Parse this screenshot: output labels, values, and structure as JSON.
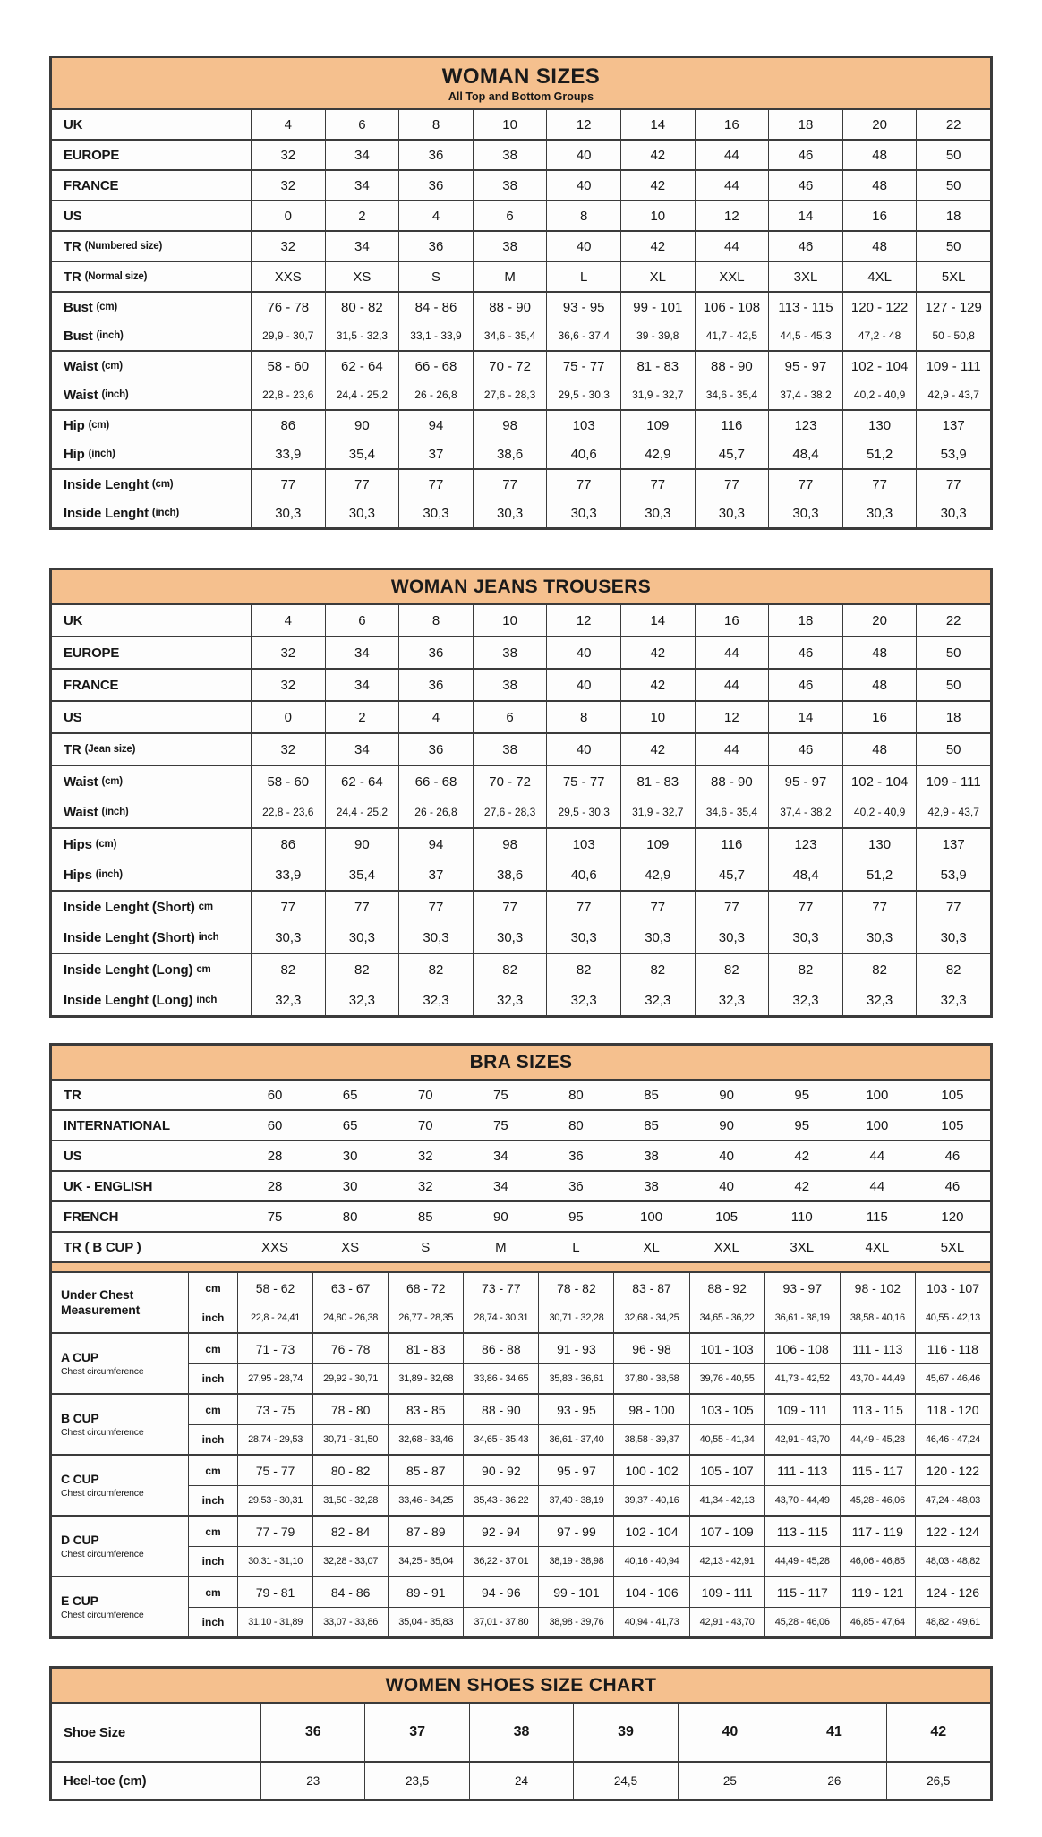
{
  "colors": {
    "header_bg": "#F5C08E",
    "border": "#3B3B3B",
    "text": "#161616"
  },
  "tables": [
    {
      "kind": "standard",
      "title": "WOMAN SIZES",
      "subtitle": "All Top and Bottom Groups",
      "groups": [
        {
          "rows": [
            {
              "label": "UK",
              "sub": "",
              "values": [
                "4",
                "6",
                "8",
                "10",
                "12",
                "14",
                "16",
                "18",
                "20",
                "22"
              ]
            }
          ]
        },
        {
          "rows": [
            {
              "label": "EUROPE",
              "sub": "",
              "values": [
                "32",
                "34",
                "36",
                "38",
                "40",
                "42",
                "44",
                "46",
                "48",
                "50"
              ]
            }
          ]
        },
        {
          "rows": [
            {
              "label": "FRANCE",
              "sub": "",
              "values": [
                "32",
                "34",
                "36",
                "38",
                "40",
                "42",
                "44",
                "46",
                "48",
                "50"
              ]
            }
          ]
        },
        {
          "rows": [
            {
              "label": "US",
              "sub": "",
              "values": [
                "0",
                "2",
                "4",
                "6",
                "8",
                "10",
                "12",
                "14",
                "16",
                "18"
              ]
            }
          ]
        },
        {
          "rows": [
            {
              "label": "TR",
              "sub": "(Numbered size)",
              "values": [
                "32",
                "34",
                "36",
                "38",
                "40",
                "42",
                "44",
                "46",
                "48",
                "50"
              ]
            }
          ]
        },
        {
          "rows": [
            {
              "label": "TR",
              "sub": "(Normal size)",
              "values": [
                "XXS",
                "XS",
                "S",
                "M",
                "L",
                "XL",
                "XXL",
                "3XL",
                "4XL",
                "5XL"
              ]
            }
          ]
        },
        {
          "rows": [
            {
              "label": "Bust",
              "sub": "(cm)",
              "values": [
                "76 - 78",
                "80 - 82",
                "84 - 86",
                "88 - 90",
                "93 - 95",
                "99 - 101",
                "106 - 108",
                "113 - 115",
                "120 - 122",
                "127 - 129"
              ]
            },
            {
              "label": "Bust",
              "sub": "(inch)",
              "small": true,
              "values": [
                "29,9 - 30,7",
                "31,5 - 32,3",
                "33,1 - 33,9",
                "34,6 - 35,4",
                "36,6 - 37,4",
                "39 - 39,8",
                "41,7 - 42,5",
                "44,5 - 45,3",
                "47,2 - 48",
                "50 - 50,8"
              ]
            }
          ]
        },
        {
          "rows": [
            {
              "label": "Waist",
              "sub": "(cm)",
              "values": [
                "58 - 60",
                "62 - 64",
                "66 - 68",
                "70 - 72",
                "75 - 77",
                "81 - 83",
                "88 - 90",
                "95 - 97",
                "102 - 104",
                "109 - 111"
              ]
            },
            {
              "label": "Waist",
              "sub": "(inch)",
              "small": true,
              "values": [
                "22,8 - 23,6",
                "24,4 - 25,2",
                "26 - 26,8",
                "27,6 - 28,3",
                "29,5 - 30,3",
                "31,9 - 32,7",
                "34,6 - 35,4",
                "37,4 - 38,2",
                "40,2 - 40,9",
                "42,9 - 43,7"
              ]
            }
          ]
        },
        {
          "rows": [
            {
              "label": "Hip",
              "sub": "(cm)",
              "values": [
                "86",
                "90",
                "94",
                "98",
                "103",
                "109",
                "116",
                "123",
                "130",
                "137"
              ]
            },
            {
              "label": "Hip",
              "sub": "(inch)",
              "values": [
                "33,9",
                "35,4",
                "37",
                "38,6",
                "40,6",
                "42,9",
                "45,7",
                "48,4",
                "51,2",
                "53,9"
              ]
            }
          ]
        },
        {
          "rows": [
            {
              "label": "Inside Lenght",
              "sub": "(cm)",
              "values": [
                "77",
                "77",
                "77",
                "77",
                "77",
                "77",
                "77",
                "77",
                "77",
                "77"
              ]
            },
            {
              "label": "Inside Lenght",
              "sub": "(inch)",
              "values": [
                "30,3",
                "30,3",
                "30,3",
                "30,3",
                "30,3",
                "30,3",
                "30,3",
                "30,3",
                "30,3",
                "30,3"
              ]
            }
          ]
        }
      ]
    },
    {
      "kind": "standard",
      "title": "WOMAN JEANS TROUSERS",
      "subtitle": "",
      "groups": [
        {
          "rows": [
            {
              "label": "UK",
              "sub": "",
              "values": [
                "4",
                "6",
                "8",
                "10",
                "12",
                "14",
                "16",
                "18",
                "20",
                "22"
              ]
            }
          ]
        },
        {
          "rows": [
            {
              "label": "EUROPE",
              "sub": "",
              "values": [
                "32",
                "34",
                "36",
                "38",
                "40",
                "42",
                "44",
                "46",
                "48",
                "50"
              ]
            }
          ]
        },
        {
          "rows": [
            {
              "label": "FRANCE",
              "sub": "",
              "values": [
                "32",
                "34",
                "36",
                "38",
                "40",
                "42",
                "44",
                "46",
                "48",
                "50"
              ]
            }
          ]
        },
        {
          "rows": [
            {
              "label": "US",
              "sub": "",
              "values": [
                "0",
                "2",
                "4",
                "6",
                "8",
                "10",
                "12",
                "14",
                "16",
                "18"
              ]
            }
          ]
        },
        {
          "rows": [
            {
              "label": "TR",
              "sub": "(Jean size)",
              "values": [
                "32",
                "34",
                "36",
                "38",
                "40",
                "42",
                "44",
                "46",
                "48",
                "50"
              ]
            }
          ]
        },
        {
          "rows": [
            {
              "label": "Waist",
              "sub": "(cm)",
              "values": [
                "58 - 60",
                "62 - 64",
                "66 - 68",
                "70 - 72",
                "75 - 77",
                "81 - 83",
                "88 - 90",
                "95 - 97",
                "102 - 104",
                "109 - 111"
              ]
            },
            {
              "label": "Waist",
              "sub": "(inch)",
              "small": true,
              "values": [
                "22,8 - 23,6",
                "24,4 - 25,2",
                "26 - 26,8",
                "27,6 - 28,3",
                "29,5 - 30,3",
                "31,9 - 32,7",
                "34,6 - 35,4",
                "37,4 - 38,2",
                "40,2 - 40,9",
                "42,9 - 43,7"
              ]
            }
          ]
        },
        {
          "rows": [
            {
              "label": "Hips",
              "sub": "(cm)",
              "values": [
                "86",
                "90",
                "94",
                "98",
                "103",
                "109",
                "116",
                "123",
                "130",
                "137"
              ]
            },
            {
              "label": "Hips",
              "sub": "(inch)",
              "values": [
                "33,9",
                "35,4",
                "37",
                "38,6",
                "40,6",
                "42,9",
                "45,7",
                "48,4",
                "51,2",
                "53,9"
              ]
            }
          ]
        },
        {
          "rows": [
            {
              "label": "Inside Lenght (Short)",
              "sub": "cm",
              "values": [
                "77",
                "77",
                "77",
                "77",
                "77",
                "77",
                "77",
                "77",
                "77",
                "77"
              ]
            },
            {
              "label": "Inside Lenght (Short)",
              "sub": "inch",
              "values": [
                "30,3",
                "30,3",
                "30,3",
                "30,3",
                "30,3",
                "30,3",
                "30,3",
                "30,3",
                "30,3",
                "30,3"
              ]
            }
          ]
        },
        {
          "rows": [
            {
              "label": "Inside Lenght (Long)",
              "sub": "cm",
              "values": [
                "82",
                "82",
                "82",
                "82",
                "82",
                "82",
                "82",
                "82",
                "82",
                "82"
              ]
            },
            {
              "label": "Inside Lenght (Long)",
              "sub": "inch",
              "values": [
                "32,3",
                "32,3",
                "32,3",
                "32,3",
                "32,3",
                "32,3",
                "32,3",
                "32,3",
                "32,3",
                "32,3"
              ]
            }
          ]
        }
      ]
    },
    {
      "kind": "bra",
      "title": "BRA SIZES",
      "subtitle": "",
      "top_rows": [
        {
          "label": "TR",
          "values": [
            "60",
            "65",
            "70",
            "75",
            "80",
            "85",
            "90",
            "95",
            "100",
            "105"
          ]
        },
        {
          "label": "INTERNATIONAL",
          "values": [
            "60",
            "65",
            "70",
            "75",
            "80",
            "85",
            "90",
            "95",
            "100",
            "105"
          ]
        },
        {
          "label": "US",
          "values": [
            "28",
            "30",
            "32",
            "34",
            "36",
            "38",
            "40",
            "42",
            "44",
            "46"
          ]
        },
        {
          "label": "UK - ENGLISH",
          "values": [
            "28",
            "30",
            "32",
            "34",
            "36",
            "38",
            "40",
            "42",
            "44",
            "46"
          ]
        },
        {
          "label": "FRENCH",
          "values": [
            "75",
            "80",
            "85",
            "90",
            "95",
            "100",
            "105",
            "110",
            "115",
            "120"
          ]
        },
        {
          "label": "TR ( B CUP )",
          "values": [
            "XXS",
            "XS",
            "S",
            "M",
            "L",
            "XL",
            "XXL",
            "3XL",
            "4XL",
            "5XL"
          ]
        }
      ],
      "groups": [
        {
          "label": "Under Chest Measurement",
          "sub": "",
          "rows": [
            {
              "unit": "cm",
              "values": [
                "58 - 62",
                "63 - 67",
                "68 - 72",
                "73 - 77",
                "78 - 82",
                "83 - 87",
                "88 - 92",
                "93 - 97",
                "98 - 102",
                "103 - 107"
              ]
            },
            {
              "unit": "inch",
              "small": true,
              "values": [
                "22,8 - 24,41",
                "24,80 - 26,38",
                "26,77 - 28,35",
                "28,74 - 30,31",
                "30,71 - 32,28",
                "32,68 - 34,25",
                "34,65 - 36,22",
                "36,61 - 38,19",
                "38,58 - 40,16",
                "40,55 - 42,13"
              ]
            }
          ]
        },
        {
          "label": "A CUP",
          "sub": "Chest circumference",
          "rows": [
            {
              "unit": "cm",
              "values": [
                "71 - 73",
                "76 - 78",
                "81 - 83",
                "86 - 88",
                "91 - 93",
                "96 - 98",
                "101 - 103",
                "106 - 108",
                "111 - 113",
                "116 - 118"
              ]
            },
            {
              "unit": "inch",
              "small": true,
              "values": [
                "27,95 - 28,74",
                "29,92 - 30,71",
                "31,89 - 32,68",
                "33,86 - 34,65",
                "35,83 - 36,61",
                "37,80 - 38,58",
                "39,76 - 40,55",
                "41,73 - 42,52",
                "43,70 - 44,49",
                "45,67 - 46,46"
              ]
            }
          ]
        },
        {
          "label": "B CUP",
          "sub": "Chest circumference",
          "rows": [
            {
              "unit": "cm",
              "values": [
                "73 - 75",
                "78 - 80",
                "83 - 85",
                "88 - 90",
                "93 - 95",
                "98 - 100",
                "103 - 105",
                "109 - 111",
                "113 - 115",
                "118 - 120"
              ]
            },
            {
              "unit": "inch",
              "small": true,
              "values": [
                "28,74 - 29,53",
                "30,71 - 31,50",
                "32,68 - 33,46",
                "34,65 - 35,43",
                "36,61 - 37,40",
                "38,58 - 39,37",
                "40,55 - 41,34",
                "42,91 - 43,70",
                "44,49 - 45,28",
                "46,46 - 47,24"
              ]
            }
          ]
        },
        {
          "label": "C CUP",
          "sub": "Chest circumference",
          "rows": [
            {
              "unit": "cm",
              "values": [
                "75 - 77",
                "80 - 82",
                "85 - 87",
                "90 - 92",
                "95 - 97",
                "100 - 102",
                "105 - 107",
                "111 - 113",
                "115 - 117",
                "120 - 122"
              ]
            },
            {
              "unit": "inch",
              "small": true,
              "values": [
                "29,53 - 30,31",
                "31,50 - 32,28",
                "33,46 - 34,25",
                "35,43 - 36,22",
                "37,40 - 38,19",
                "39,37 - 40,16",
                "41,34 - 42,13",
                "43,70 - 44,49",
                "45,28 - 46,06",
                "47,24 - 48,03"
              ]
            }
          ]
        },
        {
          "label": "D CUP",
          "sub": "Chest circumference",
          "rows": [
            {
              "unit": "cm",
              "values": [
                "77 - 79",
                "82 - 84",
                "87 - 89",
                "92 - 94",
                "97 - 99",
                "102 - 104",
                "107 - 109",
                "113 - 115",
                "117 - 119",
                "122 - 124"
              ]
            },
            {
              "unit": "inch",
              "small": true,
              "values": [
                "30,31 - 31,10",
                "32,28 - 33,07",
                "34,25 - 35,04",
                "36,22 - 37,01",
                "38,19 - 38,98",
                "40,16 - 40,94",
                "42,13 - 42,91",
                "44,49 - 45,28",
                "46,06 - 46,85",
                "48,03 - 48,82"
              ]
            }
          ]
        },
        {
          "label": "E CUP",
          "sub": "Chest circumference",
          "rows": [
            {
              "unit": "cm",
              "values": [
                "79 - 81",
                "84 - 86",
                "89 - 91",
                "94 - 96",
                "99 - 101",
                "104 - 106",
                "109 - 111",
                "115 - 117",
                "119 - 121",
                "124 - 126"
              ]
            },
            {
              "unit": "inch",
              "small": true,
              "values": [
                "31,10 - 31,89",
                "33,07 - 33,86",
                "35,04 - 35,83",
                "37,01 - 37,80",
                "38,98 - 39,76",
                "40,94 - 41,73",
                "42,91 - 43,70",
                "45,28 - 46,06",
                "46,85 - 47,64",
                "48,82 - 49,61"
              ]
            }
          ]
        }
      ]
    },
    {
      "kind": "shoes",
      "title": "WOMEN SHOES SIZE CHART",
      "subtitle": "",
      "rows": [
        {
          "label": "Shoe Size",
          "sub": "",
          "bold": true,
          "values": [
            "36",
            "37",
            "38",
            "39",
            "40",
            "41",
            "42"
          ]
        },
        {
          "label": "Heel-toe (cm)",
          "sub": "",
          "bold": false,
          "values": [
            "23",
            "23,5",
            "24",
            "24,5",
            "25",
            "26",
            "26,5"
          ]
        }
      ]
    }
  ]
}
